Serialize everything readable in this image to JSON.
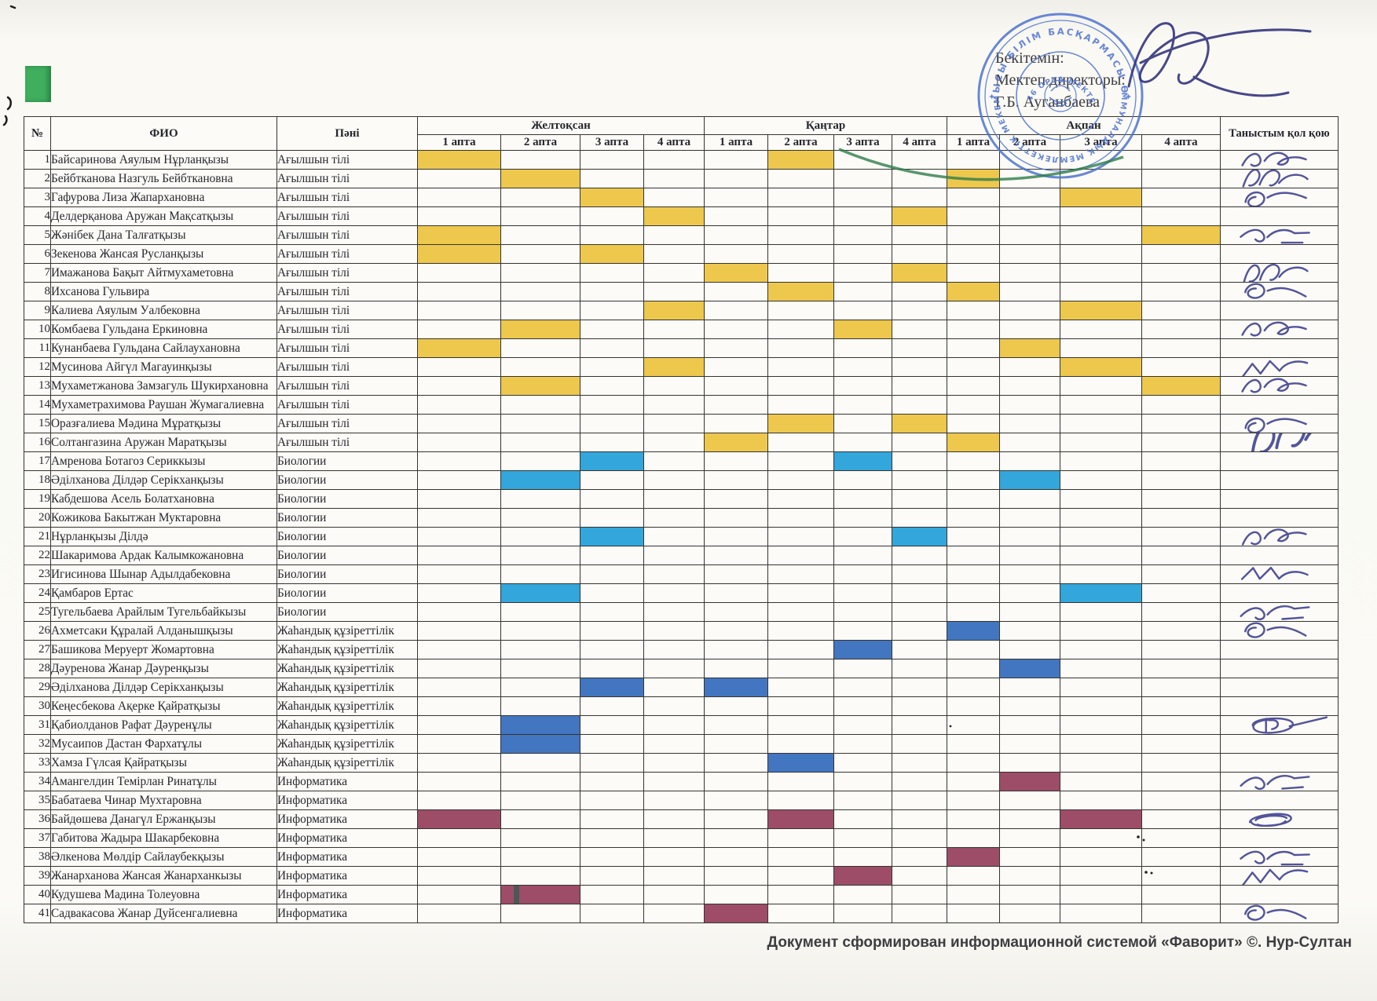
{
  "document": {
    "approval": {
      "line1": "Бекітемін:",
      "line2": "Мектеп директоры:",
      "line3": "Г.Б. Ауганбаева"
    },
    "footer_text": "Документ сформирован информационной системой «Фаворит» ©. Нур-Султан",
    "stamp": {
      "ring_text_top": "ОБЛЫСЫ БІЛІМ БАСҚАРМАСЫ ӨСКЕ",
      "ring_text_bottom": "КОММУНАЛДЫҚ МЕМЛЕКЕТТІК МЕКЕМЕСІ",
      "inner_text": "№ 46 ОРТА МЕКТЕБІ",
      "color": "#4e74d0",
      "green_arc_color": "#2e7d4b",
      "ink_color": "#34357e"
    }
  },
  "table": {
    "headers": {
      "num": "№",
      "name": "ФИО",
      "subject": "Пәні",
      "sign": "Таныстым қол қою",
      "months": [
        "Желтоқсан",
        "Қаңтар",
        "Ақпан"
      ],
      "weeks": [
        "1 апта",
        "2 апта",
        "3 апта",
        "4 апта"
      ]
    },
    "subject_colors": {
      "Ағылшын тілі": "#eec84d",
      "Биологии": "#33a6dc",
      "Жаһандық құзіреттілік": "#4276c0",
      "Информатика": "#9d4d68"
    },
    "rows": [
      {
        "n": 1,
        "name": "Байсаринова Аяулым Нұрланқызы",
        "subject": "Ағылшын тілі",
        "cells": [
          1,
          6
        ]
      },
      {
        "n": 2,
        "name": "Бейбтканова Назгуль Бейбткановна",
        "subject": "Ағылшын тілі",
        "cells": [
          2,
          9
        ]
      },
      {
        "n": 3,
        "name": "Гафурова Лиза Жапархановна",
        "subject": "Ағылшын тілі",
        "cells": [
          3,
          11
        ]
      },
      {
        "n": 4,
        "name": "Делдерқанова Аружан Мақсатқызы",
        "subject": "Ағылшын тілі",
        "cells": [
          4,
          8
        ]
      },
      {
        "n": 5,
        "name": "Жәнібек Дана Талғатқызы",
        "subject": "Ағылшын тілі",
        "cells": [
          1,
          12
        ]
      },
      {
        "n": 6,
        "name": "Зекенова Жансая Русланқызы",
        "subject": "Ағылшын тілі",
        "cells": [
          1,
          3
        ]
      },
      {
        "n": 7,
        "name": "Имажанова Бақыт Айтмухаметовна",
        "subject": "Ағылшын тілі",
        "cells": [
          5,
          8
        ]
      },
      {
        "n": 8,
        "name": "Ихсанова Гульвира",
        "subject": "Ағылшын тілі",
        "cells": [
          6,
          9
        ]
      },
      {
        "n": 9,
        "name": "Калиева Аяулым Уалбековна",
        "subject": "Ағылшын тілі",
        "cells": [
          4,
          11
        ]
      },
      {
        "n": 10,
        "name": "Комбаева Гульдана Еркиновна",
        "subject": "Ағылшын тілі",
        "cells": [
          2,
          7
        ]
      },
      {
        "n": 11,
        "name": "Кунанбаева Гульдана Сайлаухановна",
        "subject": "Ағылшын тілі",
        "cells": [
          1,
          10
        ]
      },
      {
        "n": 12,
        "name": "Мусинова Айгүл Магауинқызы",
        "subject": "Ағылшын тілі",
        "cells": [
          4,
          11
        ]
      },
      {
        "n": 13,
        "name": "Мухаметжанова Замзагуль Шукирхановна",
        "subject": "Ағылшын тілі",
        "cells": [
          2,
          12
        ]
      },
      {
        "n": 14,
        "name": "Мухаметрахимова Раушан Жумагалиевна",
        "subject": "Ағылшын тілі",
        "cells": []
      },
      {
        "n": 15,
        "name": "Оразғалиева Мәдина Мұратқызы",
        "subject": "Ағылшын тілі",
        "cells": [
          6,
          8
        ]
      },
      {
        "n": 16,
        "name": "Солтангазина Аружан Маратқызы",
        "subject": "Ағылшын тілі",
        "cells": [
          5,
          9
        ]
      },
      {
        "n": 17,
        "name": "Амренова Ботагоз Сериккызы",
        "subject": "Биологии",
        "cells": [
          3,
          7
        ]
      },
      {
        "n": 18,
        "name": "Әділханова Ділдәр Серікханқызы",
        "subject": "Биологии",
        "cells": [
          2,
          10
        ]
      },
      {
        "n": 19,
        "name": "Кабдешова Асель Болатхановна",
        "subject": "Биологии",
        "cells": []
      },
      {
        "n": 20,
        "name": "Кожикова Бакытжан Муктаровна",
        "subject": "Биологии",
        "cells": []
      },
      {
        "n": 21,
        "name": "Нұрланқызы Ділдә",
        "subject": "Биологии",
        "cells": [
          3,
          8
        ]
      },
      {
        "n": 22,
        "name": "Шакаримова Ардак Калымкожановна",
        "subject": "Биологии",
        "cells": []
      },
      {
        "n": 23,
        "name": "Игисинова Шынар Адылдабековна",
        "subject": "Биологии",
        "cells": []
      },
      {
        "n": 24,
        "name": "Қамбаров Ертас",
        "subject": "Биологии",
        "cells": [
          2,
          11
        ]
      },
      {
        "n": 25,
        "name": "Тугельбаева Арайлым Тугельбайкызы",
        "subject": "Биологии",
        "cells": []
      },
      {
        "n": 26,
        "name": "Ахметсаки Құралай Алданышқызы",
        "subject": "Жаһандық құзіреттілік",
        "cells": [
          9
        ]
      },
      {
        "n": 27,
        "name": "Башикова Меруерт Жомартовна",
        "subject": "Жаһандық құзіреттілік",
        "cells": [
          7
        ]
      },
      {
        "n": 28,
        "name": "Дәуренова Жанар Дәуренқызы",
        "subject": "Жаһандық құзіреттілік",
        "cells": [
          10
        ]
      },
      {
        "n": 29,
        "name": "Әділханова Ділдәр Серікханқызы",
        "subject": "Жаһандық құзіреттілік",
        "cells": [
          3,
          5
        ]
      },
      {
        "n": 30,
        "name": "Кеңесбекова Ақерке Қайратқызы",
        "subject": "Жаһандық құзіреттілік",
        "cells": []
      },
      {
        "n": 31,
        "name": "Қабиолданов Рафат Дәуренұлы",
        "subject": "Жаһандық құзіреттілік",
        "cells": [
          2
        ]
      },
      {
        "n": 32,
        "name": "Мусаипов Дастан Фархатұлы",
        "subject": "Жаһандық құзіреттілік",
        "cells": [
          2
        ]
      },
      {
        "n": 33,
        "name": "Хамза Гүлсая Қайратқызы",
        "subject": "Жаһандық құзіреттілік",
        "cells": [
          6
        ]
      },
      {
        "n": 34,
        "name": "Амангелдин Темірлан Ринатұлы",
        "subject": "Информатика",
        "cells": [
          10
        ]
      },
      {
        "n": 35,
        "name": "Бабатаева Чинар Мухтаровна",
        "subject": "Информатика",
        "cells": []
      },
      {
        "n": 36,
        "name": "Байдөшева Данагүл Ержанқызы",
        "subject": "Информатика",
        "cells": [
          1,
          6,
          11
        ]
      },
      {
        "n": 37,
        "name": "Габитова Жадыра Шакарбековна",
        "subject": "Информатика",
        "cells": []
      },
      {
        "n": 38,
        "name": "Әлкенова Мөлдір Сайлаубекқызы",
        "subject": "Информатика",
        "cells": [
          9
        ]
      },
      {
        "n": 39,
        "name": "Жанарханова Жансая Жанарханкызы",
        "subject": "Информатика",
        "cells": [
          7
        ]
      },
      {
        "n": 40,
        "name": "Кудушева Мадина Толеуовна",
        "subject": "Информатика",
        "cells": [
          2
        ],
        "streak": 2
      },
      {
        "n": 41,
        "name": "Садвакасова Жанар Дуйсенгалиевна",
        "subject": "Информатика",
        "cells": [
          5
        ]
      }
    ],
    "signatures": [
      {
        "row": 1,
        "variant": 1
      },
      {
        "row": 2,
        "variant": 2
      },
      {
        "row": 3,
        "variant": 4
      },
      {
        "row": 5,
        "variant": 3
      },
      {
        "row": 7,
        "variant": 2
      },
      {
        "row": 8,
        "variant": 4
      },
      {
        "row": 10,
        "variant": 1
      },
      {
        "row": 12,
        "variant": 5
      },
      {
        "row": 13,
        "variant": 1
      },
      {
        "row": 15,
        "variant": 4
      },
      {
        "row": 16,
        "variant": 2,
        "big": true
      },
      {
        "row": 21,
        "variant": 1
      },
      {
        "row": 23,
        "variant": 5
      },
      {
        "row": 25,
        "variant": 3
      },
      {
        "row": 26,
        "variant": 4
      },
      {
        "row": 31,
        "variant": 6
      },
      {
        "row": 34,
        "variant": 3
      },
      {
        "row": 36,
        "variant": 7
      },
      {
        "row": 38,
        "variant": 3
      },
      {
        "row": 39,
        "variant": 5
      },
      {
        "row": 41,
        "variant": 4
      }
    ]
  }
}
